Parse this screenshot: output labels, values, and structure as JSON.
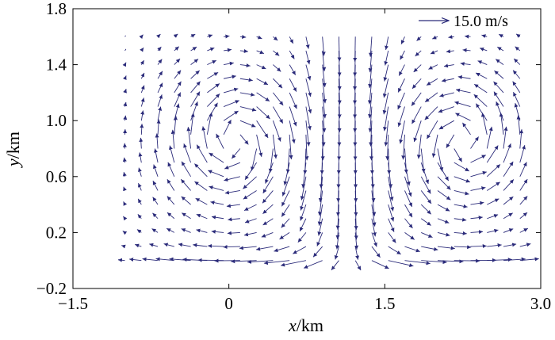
{
  "chart_data": {
    "type": "vector-field",
    "xlabel": {
      "var": "x",
      "unit": "/km"
    },
    "ylabel": {
      "var": "y",
      "unit": "/km"
    },
    "xlim": [
      -1.5,
      3.0
    ],
    "ylim": [
      -0.2,
      1.8
    ],
    "x_ticks": [
      -1.5,
      0,
      1.5,
      3.0
    ],
    "x_tick_labels": [
      "−1.5",
      "0",
      "1.5",
      "3.0"
    ],
    "y_ticks": [
      -0.2,
      0.2,
      0.6,
      1.0,
      1.4,
      1.8
    ],
    "y_tick_labels": [
      "−0.2",
      "0.2",
      "0.6",
      "1.0",
      "1.4",
      "1.8"
    ],
    "grid": false,
    "reference_vector": {
      "magnitude": 15.0,
      "label": "15.0 m/s",
      "position": "top-right"
    },
    "arrow_color": "#2b2b7a",
    "field": {
      "description": "Two counter-rotating vortices, vortex centers near x=0.05 and x=2.25 km, y=0.85 km; strong downward flow near x=1.15 km; spreading outflow along y=0.",
      "x_start": -1.0,
      "x_end": 2.8,
      "nx": 25,
      "y_start": 0.0,
      "y_end": 1.6,
      "ny": 17,
      "max_speed": 16
    }
  }
}
